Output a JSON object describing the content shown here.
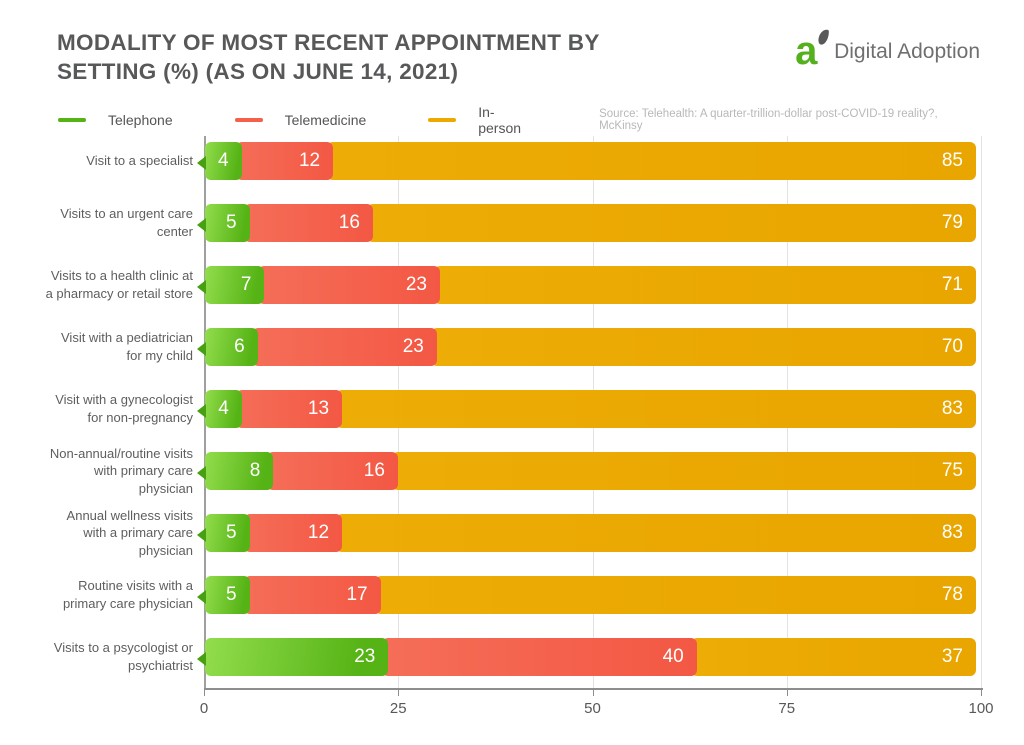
{
  "header": {
    "title_line1": "MODALITY OF MOST RECENT APPOINTMENT BY",
    "title_line2": "SETTING (%) (AS ON JUNE 14, 2021)",
    "brand": "Digital Adoption",
    "logo_letter": "a"
  },
  "legend": {
    "source": "Source: Telehealth: A quarter-trillion-dollar post-COVID-19 reality?, McKinsy"
  },
  "chart_data": {
    "type": "bar",
    "stacked": true,
    "orientation": "horizontal",
    "title": "MODALITY OF MOST RECENT APPOINTMENT BY SETTING (%) (AS ON JUNE 14, 2021)",
    "categories": [
      "Visit to a specialist",
      "Visits to an urgent care center",
      "Visits to a health clinic at a pharmacy or retail store",
      "Visit with a pediatrician for my child",
      "Visit with a gynecologist for non-pregnancy",
      "Non-annual/routine visits with primary care physician",
      "Annual wellness visits with a primary care physician",
      "Routine visits with a primary care physician",
      "Visits to a psycologist or psychiatrist"
    ],
    "series": [
      {
        "name": "Telephone",
        "color": "#55b315",
        "values": [
          4,
          5,
          7,
          6,
          4,
          8,
          5,
          5,
          23
        ]
      },
      {
        "name": "Telemedicine",
        "color": "#f4604a",
        "values": [
          12,
          16,
          23,
          23,
          13,
          16,
          12,
          17,
          40
        ]
      },
      {
        "name": "In-person",
        "color": "#ecaa00",
        "values": [
          85,
          79,
          71,
          70,
          83,
          75,
          83,
          78,
          37
        ]
      }
    ],
    "xlabel": "",
    "ylabel": "",
    "xlim": [
      0,
      100
    ],
    "xticks": [
      0,
      25,
      50,
      75,
      100
    ],
    "grid": "vertical",
    "legend_position": "top-left",
    "value_labels": "inside-end",
    "colors": {
      "telephone_gradient_light": "#92dd4c",
      "telephone_gradient_dark": "#55b315",
      "telemedicine": "#f4604a",
      "in_person": "#ecaa00",
      "pointer_green": "#46a011",
      "title_text": "#57585a",
      "axis_text": "#58585a",
      "category_text": "#5e5e60",
      "source_text": "#b8b8b8",
      "gridline": "#e3e3e3"
    }
  }
}
